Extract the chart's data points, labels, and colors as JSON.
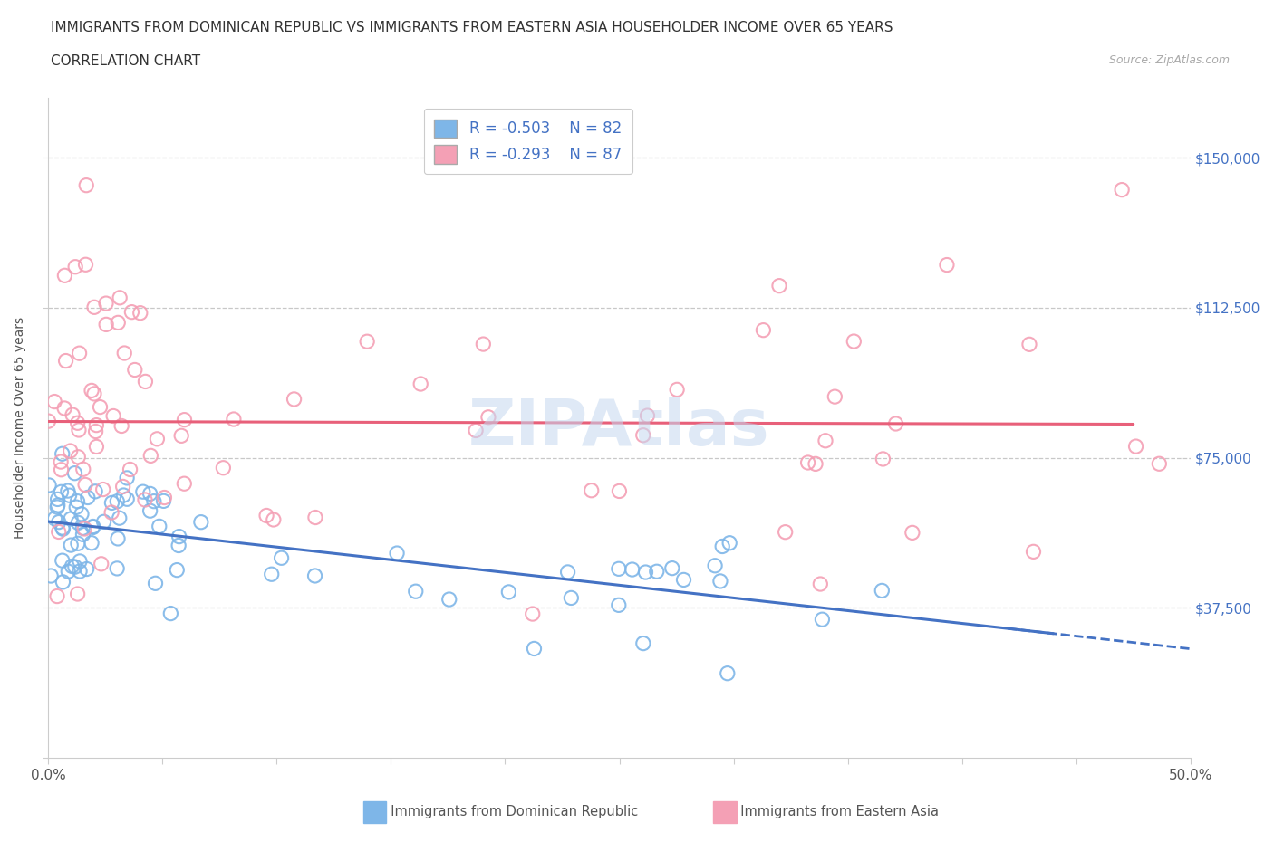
{
  "title_line1": "IMMIGRANTS FROM DOMINICAN REPUBLIC VS IMMIGRANTS FROM EASTERN ASIA HOUSEHOLDER INCOME OVER 65 YEARS",
  "title_line2": "CORRELATION CHART",
  "source_text": "Source: ZipAtlas.com",
  "ylabel": "Householder Income Over 65 years",
  "xlim": [
    0.0,
    0.5
  ],
  "ylim": [
    0,
    165000
  ],
  "ytick_positions": [
    0,
    37500,
    75000,
    112500,
    150000
  ],
  "ytick_labels": [
    "",
    "$37,500",
    "$75,000",
    "$112,500",
    "$150,000"
  ],
  "hlines": [
    150000,
    112500,
    75000,
    37500
  ],
  "color_blue": "#7eb6e8",
  "color_blue_line": "#4472c4",
  "color_pink": "#f4a0b5",
  "color_pink_line": "#e8607a",
  "legend_R1": "R = -0.503",
  "legend_N1": "N = 82",
  "legend_R2": "R = -0.293",
  "legend_N2": "N = 87",
  "watermark": "ZIPAtlas",
  "title_fontsize": 11,
  "axis_label_fontsize": 10,
  "tick_fontsize": 11,
  "right_tick_color": "#4472c4",
  "blue_line_intercept": 60000,
  "blue_line_slope": -70000,
  "pink_line_intercept": 87000,
  "pink_line_slope": -42000
}
